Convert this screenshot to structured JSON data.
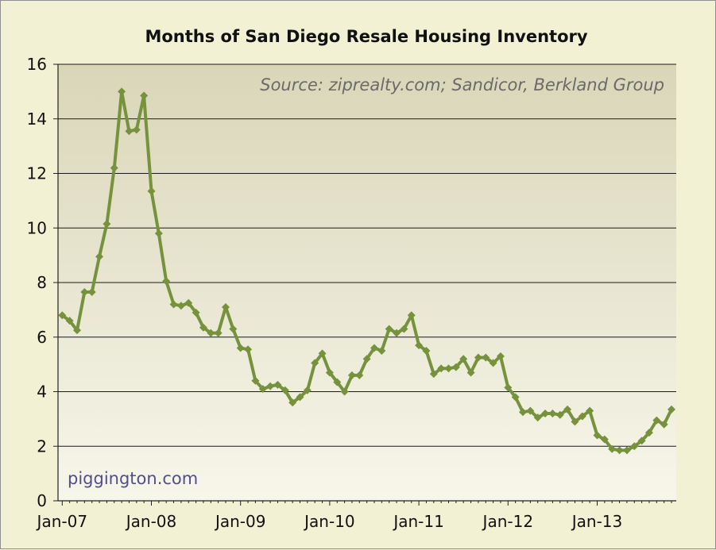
{
  "chart_data": {
    "type": "line",
    "title": "Months of San Diego Resale Housing Inventory",
    "annotation": "Source: ziprealty.com; Sandicor, Berkland Group",
    "watermark": "piggington.com",
    "xlabel": "",
    "ylabel": "",
    "ylim": [
      0,
      16
    ],
    "yticks": [
      0,
      2,
      4,
      6,
      8,
      10,
      12,
      14,
      16
    ],
    "x_start": "Jan-07",
    "x_tick_labels": [
      "Jan-07",
      "Jan-08",
      "Jan-09",
      "Jan-10",
      "Jan-11",
      "Jan-12",
      "Jan-13"
    ],
    "grid": true,
    "legend": "none",
    "series": [
      {
        "color": "#76923c",
        "values": [
          6.8,
          6.6,
          6.25,
          7.65,
          7.65,
          8.95,
          10.15,
          12.2,
          15.0,
          13.55,
          13.6,
          14.85,
          11.35,
          9.8,
          8.05,
          7.2,
          7.15,
          7.25,
          6.9,
          6.35,
          6.15,
          6.15,
          7.1,
          6.3,
          5.6,
          5.55,
          4.4,
          4.1,
          4.2,
          4.25,
          4.05,
          3.6,
          3.8,
          4.05,
          5.05,
          5.4,
          4.7,
          4.35,
          4.0,
          4.6,
          4.6,
          5.2,
          5.6,
          5.5,
          6.3,
          6.15,
          6.3,
          6.8,
          5.7,
          5.5,
          4.65,
          4.85,
          4.85,
          4.9,
          5.2,
          4.7,
          5.25,
          5.25,
          5.05,
          5.3,
          4.15,
          3.8,
          3.25,
          3.3,
          3.05,
          3.2,
          3.2,
          3.15,
          3.35,
          2.9,
          3.1,
          3.3,
          2.4,
          2.25,
          1.9,
          1.85,
          1.85,
          2.0,
          2.2,
          2.5,
          2.95,
          2.8,
          3.35
        ]
      }
    ]
  },
  "style": {
    "plot_bg_top": "#d9d6b8",
    "plot_bg_bottom": "#f7f6ea",
    "page_bg": "#f3f1d4",
    "line_color": "#76923c",
    "grid_color": "#1a1a1a"
  }
}
